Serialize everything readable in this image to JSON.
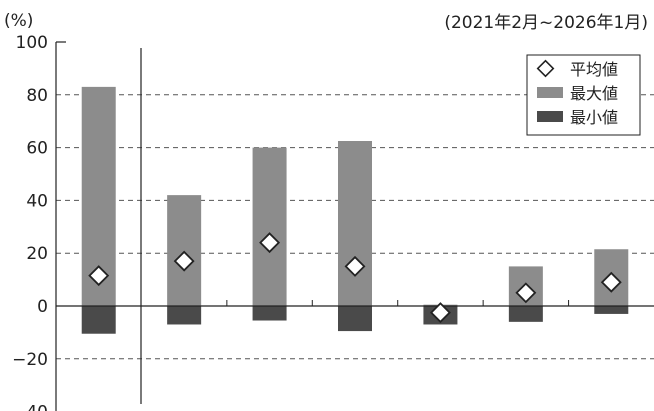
{
  "chart_data": {
    "type": "bar",
    "unit_label": "(%)",
    "period_label": "(2021年2月~2026年1月)",
    "ylim": [
      -40,
      100
    ],
    "yticks": [
      100,
      80,
      60,
      40,
      20,
      0,
      -20,
      -40
    ],
    "grid": true,
    "legend_position": "top-right",
    "categories_count": 7,
    "series": [
      {
        "name": "平均値",
        "marker": "diamond",
        "values": [
          11.5,
          17,
          24,
          15,
          -2.5,
          5,
          9
        ]
      },
      {
        "name": "最大値",
        "values": [
          83,
          42,
          60,
          62.5,
          0.5,
          15,
          21.5
        ]
      },
      {
        "name": "最小値",
        "values": [
          -10.5,
          -7,
          -5.5,
          -9.5,
          -7,
          -6,
          -3
        ]
      }
    ]
  },
  "colors": {
    "max_bar": "#8c8c8c",
    "min_bar": "#4a4a4a",
    "diamond_fill": "#ffffff",
    "axis": "#222222",
    "grid": "#555555"
  }
}
